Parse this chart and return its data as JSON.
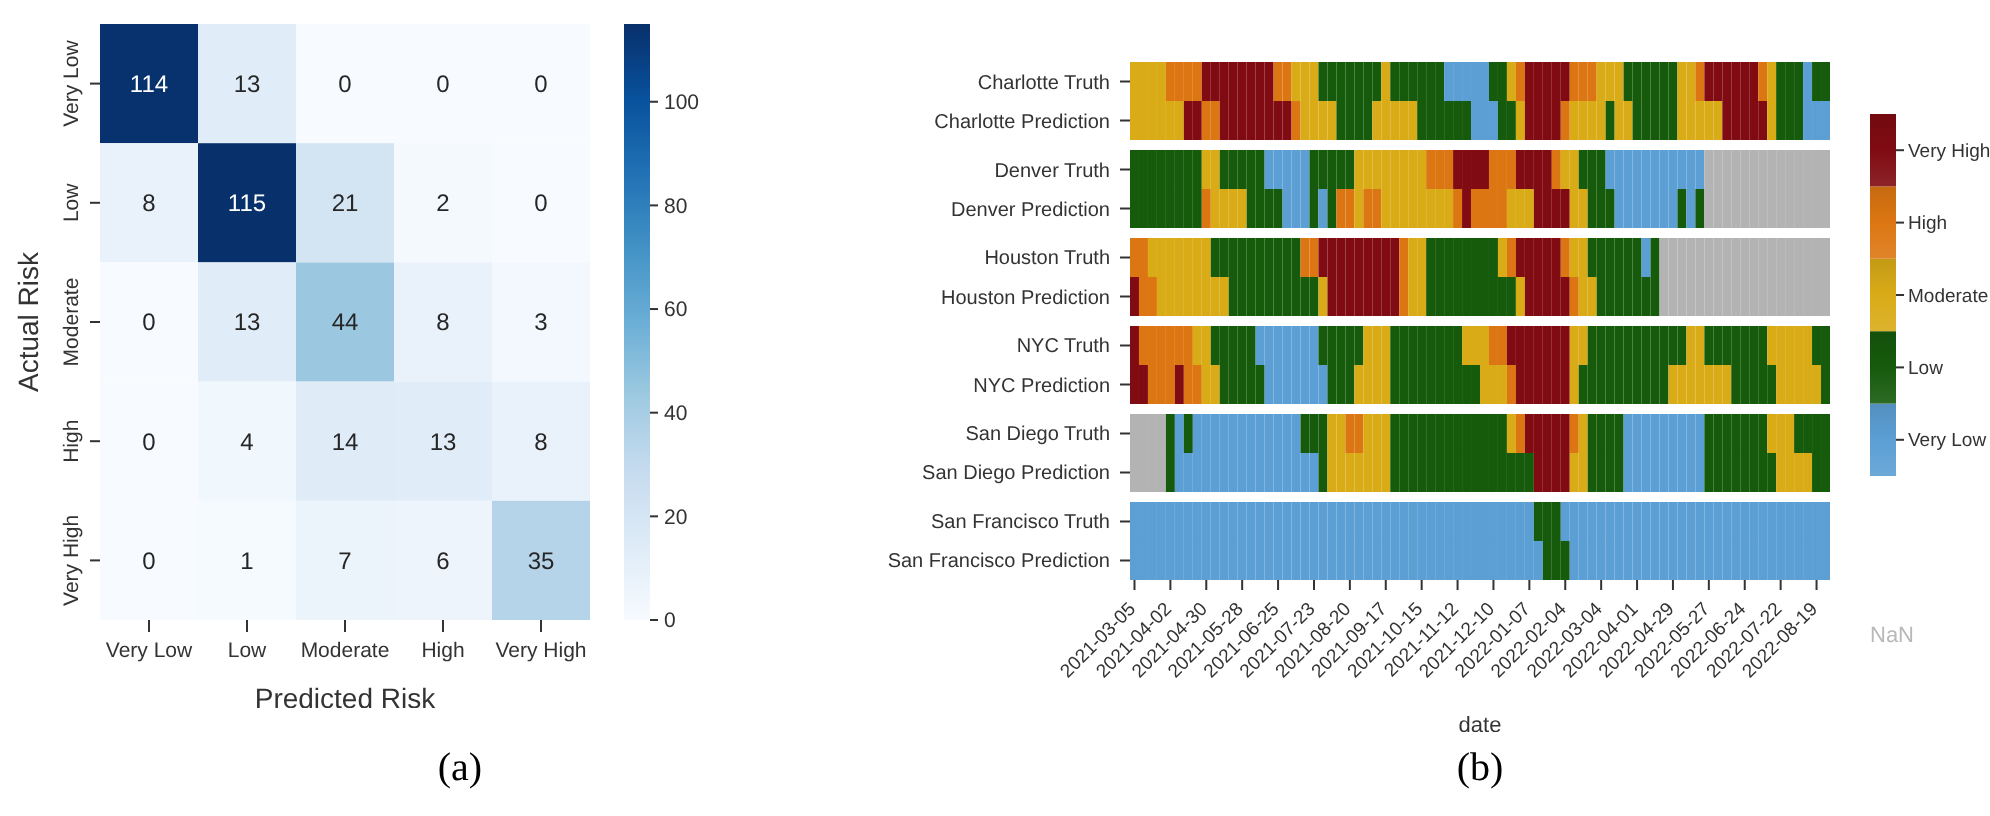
{
  "chart_data": [
    {
      "type": "heatmap",
      "xlabel": "Predicted Risk",
      "ylabel": "Actual Risk",
      "categories": [
        "Very Low",
        "Low",
        "Moderate",
        "High",
        "Very High"
      ],
      "y_categories": [
        "Very Low",
        "Low",
        "Moderate",
        "High",
        "Very High"
      ],
      "cells": [
        [
          114,
          13,
          0,
          0,
          0
        ],
        [
          8,
          115,
          21,
          2,
          0
        ],
        [
          0,
          13,
          44,
          8,
          3
        ],
        [
          0,
          4,
          14,
          13,
          8
        ],
        [
          0,
          1,
          7,
          6,
          35
        ]
      ],
      "data_labels": true,
      "clim": [
        0,
        115
      ],
      "cticks": [
        0,
        20,
        40,
        60,
        80,
        100
      ],
      "annotations": [
        "(a)"
      ]
    },
    {
      "type": "heatmap",
      "xlabel": "date",
      "categories": [
        "2021-03-05",
        null,
        null,
        null,
        "2021-04-02",
        null,
        null,
        null,
        "2021-04-30",
        null,
        null,
        null,
        "2021-05-28",
        null,
        null,
        null,
        "2021-06-25",
        null,
        null,
        null,
        "2021-07-23",
        null,
        null,
        null,
        "2021-08-20",
        null,
        null,
        null,
        "2021-09-17",
        null,
        null,
        null,
        "2021-10-15",
        null,
        null,
        null,
        "2021-11-12",
        null,
        null,
        null,
        "2021-12-10",
        null,
        null,
        null,
        "2022-01-07",
        null,
        null,
        null,
        "2022-02-04",
        null,
        null,
        null,
        "2022-03-04",
        null,
        null,
        null,
        "2022-04-01",
        null,
        null,
        null,
        "2022-04-29",
        null,
        null,
        null,
        "2022-05-27",
        null,
        null,
        null,
        "2022-06-24",
        null,
        null,
        null,
        "2022-07-22",
        null,
        null,
        null,
        "2022-08-19",
        null
      ],
      "y_categories": [
        "Charlotte Truth",
        "Charlotte Prediction",
        "Denver Truth",
        "Denver Prediction",
        "Houston Truth",
        "Houston Prediction",
        "NYC Truth",
        "NYC Prediction",
        "San Diego Truth",
        "San Diego Prediction",
        "San Francisco Truth",
        "San Francisco Prediction"
      ],
      "cells": [
        [
          2,
          2,
          2,
          2,
          3,
          3,
          3,
          3,
          4,
          4,
          4,
          4,
          4,
          4,
          4,
          4,
          3,
          3,
          2,
          2,
          2,
          1,
          1,
          1,
          1,
          1,
          1,
          1,
          2,
          1,
          1,
          1,
          1,
          1,
          1,
          0,
          0,
          0,
          0,
          0,
          1,
          1,
          2,
          3,
          4,
          4,
          4,
          4,
          4,
          3,
          3,
          3,
          2,
          2,
          2,
          1,
          1,
          1,
          1,
          1,
          1,
          2,
          2,
          3,
          4,
          4,
          4,
          4,
          4,
          4,
          3,
          2,
          1,
          1,
          1,
          0,
          1,
          1
        ],
        [
          2,
          2,
          2,
          2,
          2,
          2,
          4,
          4,
          3,
          3,
          4,
          4,
          4,
          4,
          4,
          4,
          4,
          4,
          3,
          2,
          2,
          2,
          2,
          1,
          1,
          1,
          1,
          2,
          2,
          2,
          2,
          2,
          1,
          1,
          1,
          1,
          1,
          1,
          0,
          0,
          0,
          1,
          1,
          2,
          4,
          4,
          4,
          4,
          3,
          2,
          2,
          2,
          2,
          1,
          2,
          2,
          1,
          1,
          1,
          1,
          1,
          2,
          2,
          2,
          2,
          2,
          4,
          4,
          4,
          4,
          4,
          2,
          1,
          1,
          1,
          0,
          0,
          0
        ],
        [
          1,
          1,
          1,
          1,
          1,
          1,
          1,
          1,
          2,
          2,
          1,
          1,
          1,
          1,
          1,
          0,
          0,
          0,
          0,
          0,
          1,
          1,
          1,
          1,
          1,
          2,
          2,
          2,
          2,
          2,
          2,
          2,
          2,
          3,
          3,
          3,
          4,
          4,
          4,
          4,
          3,
          3,
          3,
          4,
          4,
          4,
          4,
          3,
          2,
          2,
          1,
          1,
          1,
          0,
          0,
          0,
          0,
          0,
          0,
          0,
          0,
          0,
          0,
          0,
          null,
          null,
          null,
          null,
          null,
          null,
          null,
          null,
          null,
          null,
          null,
          null,
          null,
          null
        ],
        [
          1,
          1,
          1,
          1,
          1,
          1,
          1,
          1,
          3,
          2,
          2,
          2,
          2,
          1,
          1,
          1,
          1,
          0,
          0,
          0,
          1,
          0,
          1,
          3,
          3,
          2,
          3,
          3,
          2,
          2,
          2,
          2,
          2,
          2,
          2,
          2,
          3,
          4,
          3,
          3,
          3,
          3,
          2,
          2,
          2,
          4,
          4,
          4,
          4,
          2,
          2,
          1,
          1,
          1,
          0,
          0,
          0,
          0,
          0,
          0,
          0,
          1,
          0,
          1,
          null,
          null,
          null,
          null,
          null,
          null,
          null,
          null,
          null,
          null,
          null,
          null,
          null,
          null
        ],
        [
          3,
          3,
          2,
          2,
          2,
          2,
          2,
          2,
          2,
          1,
          1,
          1,
          1,
          1,
          1,
          1,
          1,
          1,
          1,
          3,
          3,
          4,
          4,
          4,
          4,
          4,
          4,
          4,
          4,
          4,
          3,
          2,
          2,
          1,
          1,
          1,
          1,
          1,
          1,
          1,
          1,
          2,
          3,
          4,
          4,
          4,
          4,
          4,
          3,
          2,
          2,
          1,
          1,
          1,
          1,
          1,
          1,
          0,
          1,
          null,
          null,
          null,
          null,
          null,
          null,
          null,
          null,
          null,
          null,
          null,
          null,
          null,
          null,
          null,
          null,
          null,
          null,
          null
        ],
        [
          4,
          3,
          3,
          2,
          2,
          2,
          2,
          2,
          2,
          2,
          2,
          1,
          1,
          1,
          1,
          1,
          1,
          1,
          1,
          1,
          1,
          2,
          4,
          4,
          4,
          4,
          4,
          4,
          4,
          4,
          3,
          2,
          2,
          1,
          1,
          1,
          1,
          1,
          1,
          1,
          1,
          1,
          1,
          2,
          4,
          4,
          4,
          4,
          4,
          3,
          2,
          2,
          1,
          1,
          1,
          1,
          1,
          1,
          1,
          null,
          null,
          null,
          null,
          null,
          null,
          null,
          null,
          null,
          null,
          null,
          null,
          null,
          null,
          null,
          null,
          null,
          null,
          null
        ],
        [
          4,
          3,
          3,
          3,
          3,
          3,
          3,
          2,
          2,
          1,
          1,
          1,
          1,
          1,
          0,
          0,
          0,
          0,
          0,
          0,
          0,
          1,
          1,
          1,
          1,
          1,
          2,
          2,
          2,
          1,
          1,
          1,
          1,
          1,
          1,
          1,
          1,
          2,
          2,
          2,
          3,
          3,
          4,
          4,
          4,
          4,
          4,
          4,
          4,
          2,
          2,
          1,
          1,
          1,
          1,
          1,
          1,
          1,
          1,
          1,
          1,
          1,
          2,
          2,
          1,
          1,
          1,
          1,
          1,
          1,
          1,
          2,
          2,
          2,
          2,
          2,
          1,
          1
        ],
        [
          4,
          4,
          3,
          3,
          3,
          4,
          3,
          3,
          2,
          2,
          1,
          1,
          1,
          1,
          1,
          0,
          0,
          0,
          0,
          0,
          0,
          0,
          1,
          1,
          1,
          2,
          2,
          2,
          2,
          1,
          1,
          1,
          1,
          1,
          1,
          1,
          1,
          1,
          1,
          2,
          2,
          2,
          3,
          4,
          4,
          4,
          4,
          4,
          4,
          2,
          1,
          1,
          1,
          1,
          1,
          1,
          1,
          1,
          1,
          1,
          2,
          2,
          2,
          2,
          2,
          2,
          2,
          1,
          1,
          1,
          1,
          1,
          2,
          2,
          2,
          2,
          2,
          1
        ],
        [
          null,
          null,
          null,
          null,
          1,
          0,
          1,
          0,
          0,
          0,
          0,
          0,
          0,
          0,
          0,
          0,
          0,
          0,
          0,
          1,
          1,
          1,
          2,
          2,
          3,
          3,
          2,
          2,
          2,
          1,
          1,
          1,
          1,
          1,
          1,
          1,
          1,
          1,
          1,
          1,
          1,
          1,
          2,
          3,
          4,
          4,
          4,
          4,
          4,
          3,
          2,
          1,
          1,
          1,
          1,
          0,
          0,
          0,
          0,
          0,
          0,
          0,
          0,
          0,
          1,
          1,
          1,
          1,
          1,
          1,
          1,
          2,
          2,
          2,
          1,
          1,
          1,
          1
        ],
        [
          null,
          null,
          null,
          null,
          1,
          0,
          0,
          0,
          0,
          0,
          0,
          0,
          0,
          0,
          0,
          0,
          0,
          0,
          0,
          0,
          0,
          1,
          2,
          2,
          2,
          2,
          2,
          2,
          2,
          1,
          1,
          1,
          1,
          1,
          1,
          1,
          1,
          1,
          1,
          1,
          1,
          1,
          1,
          1,
          1,
          4,
          4,
          4,
          4,
          2,
          2,
          1,
          1,
          1,
          1,
          0,
          0,
          0,
          0,
          0,
          0,
          0,
          0,
          0,
          1,
          1,
          1,
          1,
          1,
          1,
          1,
          1,
          2,
          2,
          2,
          2,
          1,
          1
        ],
        [
          0,
          0,
          0,
          0,
          0,
          0,
          0,
          0,
          0,
          0,
          0,
          0,
          0,
          0,
          0,
          0,
          0,
          0,
          0,
          0,
          0,
          0,
          0,
          0,
          0,
          0,
          0,
          0,
          0,
          0,
          0,
          0,
          0,
          0,
          0,
          0,
          0,
          0,
          0,
          0,
          0,
          0,
          0,
          0,
          0,
          1,
          1,
          1,
          0,
          0,
          0,
          0,
          0,
          0,
          0,
          0,
          0,
          0,
          0,
          0,
          0,
          0,
          0,
          0,
          0,
          0,
          0,
          0,
          0,
          0,
          0,
          0,
          0,
          0,
          0,
          0,
          0,
          0
        ],
        [
          0,
          0,
          0,
          0,
          0,
          0,
          0,
          0,
          0,
          0,
          0,
          0,
          0,
          0,
          0,
          0,
          0,
          0,
          0,
          0,
          0,
          0,
          0,
          0,
          0,
          0,
          0,
          0,
          0,
          0,
          0,
          0,
          0,
          0,
          0,
          0,
          0,
          0,
          0,
          0,
          0,
          0,
          0,
          0,
          0,
          0,
          1,
          1,
          1,
          0,
          0,
          0,
          0,
          0,
          0,
          0,
          0,
          0,
          0,
          0,
          0,
          0,
          0,
          0,
          0,
          0,
          0,
          0,
          0,
          0,
          0,
          0,
          0,
          0,
          0,
          0,
          0,
          0
        ]
      ],
      "clim": [
        -0.5,
        4.5
      ],
      "cticks": [
        {
          "value": 0,
          "label": "Very Low"
        },
        {
          "value": 1,
          "label": "Low"
        },
        {
          "value": 2,
          "label": "Moderate"
        },
        {
          "value": 3,
          "label": "High"
        },
        {
          "value": 4,
          "label": "Very High"
        }
      ],
      "annotations": [
        "NaN",
        "(b)"
      ]
    }
  ]
}
